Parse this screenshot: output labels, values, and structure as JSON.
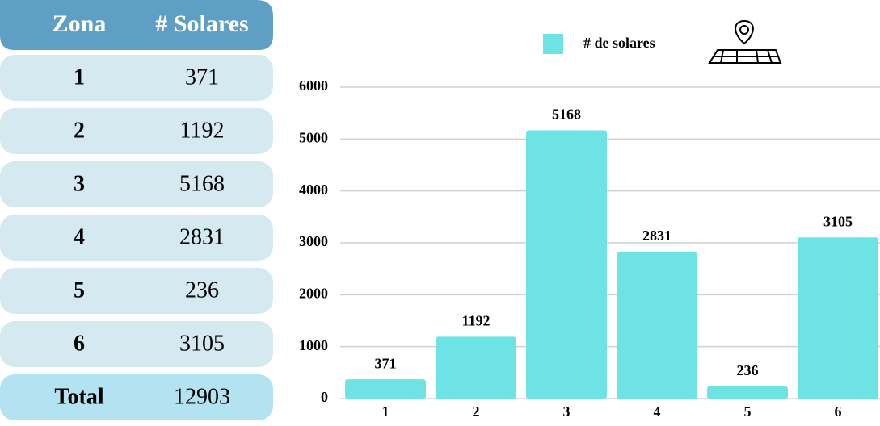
{
  "table": {
    "header": [
      "Zona",
      "# Solares"
    ],
    "rows": [
      [
        "1",
        "371"
      ],
      [
        "2",
        "1192"
      ],
      [
        "3",
        "5168"
      ],
      [
        "4",
        "2831"
      ],
      [
        "5",
        "236"
      ],
      [
        "6",
        "3105"
      ]
    ],
    "total": [
      "Total",
      "12903"
    ]
  },
  "chart_data": {
    "type": "bar",
    "categories": [
      "1",
      "2",
      "3",
      "4",
      "5",
      "6"
    ],
    "series": [
      {
        "name": "# de solares",
        "color": "#6ee3e6",
        "values": [
          371,
          1192,
          5168,
          2831,
          236,
          3105
        ]
      }
    ],
    "ylim": [
      0,
      6000
    ],
    "yticks": [
      0,
      1000,
      2000,
      3000,
      4000,
      5000,
      6000
    ],
    "grid": true,
    "legend": "top"
  }
}
